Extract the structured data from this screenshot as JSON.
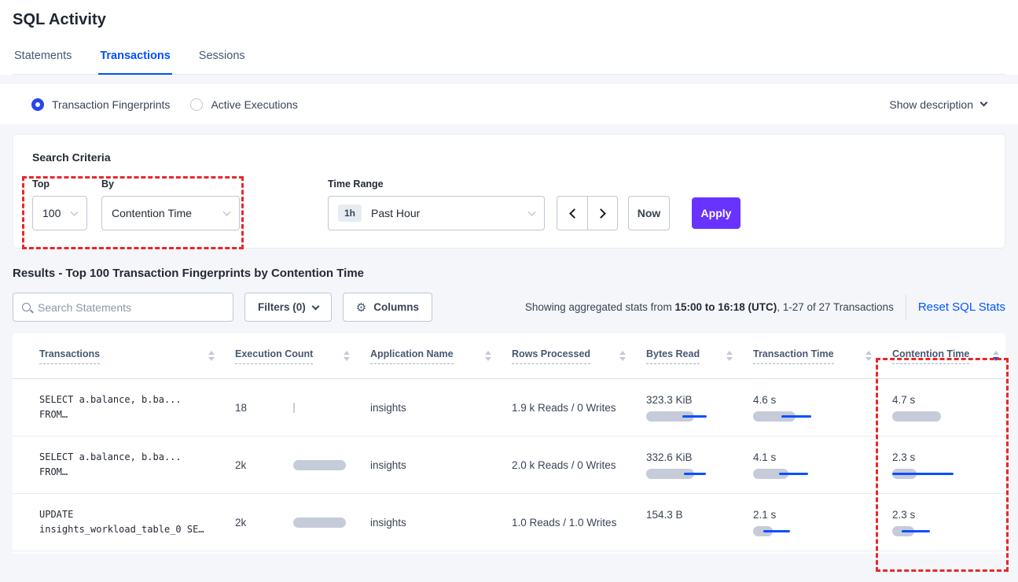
{
  "page": {
    "title": "SQL Activity"
  },
  "tabs": [
    {
      "label": "Statements",
      "active": false
    },
    {
      "label": "Transactions",
      "active": true
    },
    {
      "label": "Sessions",
      "active": false
    }
  ],
  "view_toggle": {
    "fingerprints_label": "Transaction Fingerprints",
    "active_executions_label": "Active Executions",
    "show_description_label": "Show description"
  },
  "search_criteria": {
    "heading": "Search Criteria",
    "top": {
      "label": "Top",
      "value": "100"
    },
    "by": {
      "label": "By",
      "value": "Contention Time"
    },
    "time_range": {
      "label": "Time Range",
      "badge": "1h",
      "value": "Past Hour"
    },
    "now_label": "Now",
    "apply_label": "Apply"
  },
  "results": {
    "heading": "Results - Top 100 Transaction Fingerprints by Contention Time",
    "search_placeholder": "Search Statements",
    "filters_label": "Filters (0)",
    "columns_label": "Columns",
    "stats_prefix": "Showing aggregated stats from ",
    "stats_bold": "15:00 to 16:18 (UTC)",
    "stats_suffix": ", 1-27 of 27 Transactions",
    "reset_label": "Reset SQL Stats"
  },
  "table": {
    "columns": [
      "Transactions",
      "Execution Count",
      "Application Name",
      "Rows Processed",
      "Bytes Read",
      "Transaction Time",
      "Contention Time"
    ],
    "sort": {
      "column": "Contention Time",
      "direction": "desc"
    },
    "rows": [
      {
        "statement": [
          "SELECT a.balance, b.ba...",
          "FROM…"
        ],
        "execution_count": {
          "value": "18",
          "bar": 2
        },
        "application_name": "insights",
        "rows_processed": "1.9 k Reads / 0 Writes",
        "bytes_read": {
          "value": "323.3 KiB",
          "bar": 61,
          "line": [
            46,
            77
          ]
        },
        "transaction_time": {
          "value": "4.6 s",
          "bar": 54,
          "line": [
            36,
            74
          ]
        },
        "contention_time": {
          "value": "4.7 s",
          "bar": 62,
          "line": null
        }
      },
      {
        "statement": [
          "SELECT a.balance, b.ba...",
          "FROM…"
        ],
        "execution_count": {
          "value": "2k",
          "bar": 67
        },
        "application_name": "insights",
        "rows_processed": "2.0 k Reads / 0 Writes",
        "bytes_read": {
          "value": "332.6 KiB",
          "bar": 61,
          "line": [
            48,
            76
          ]
        },
        "transaction_time": {
          "value": "4.1 s",
          "bar": 45,
          "line": [
            33,
            70
          ]
        },
        "contention_time": {
          "value": "2.3 s",
          "bar": 31,
          "line": [
            0,
            78
          ]
        }
      },
      {
        "statement": [
          "UPDATE",
          "insights_workload_table_0 SE…"
        ],
        "execution_count": {
          "value": "2k",
          "bar": 67
        },
        "application_name": "insights",
        "rows_processed": "1.0 Reads / 1.0 Writes",
        "bytes_read": {
          "value": "154.3 B",
          "bar": 0,
          "line": null
        },
        "transaction_time": {
          "value": "2.1 s",
          "bar": 25,
          "line": [
            13,
            47
          ]
        },
        "contention_time": {
          "value": "2.3 s",
          "bar": 28,
          "line": [
            12,
            48
          ]
        }
      }
    ]
  },
  "colors": {
    "accent_blue": "#0050ff",
    "apply_purple": "#6933ff",
    "highlight_red": "#e8282c",
    "bar_gray": "#c5cbd9",
    "bar_blue": "#0b4fff"
  }
}
